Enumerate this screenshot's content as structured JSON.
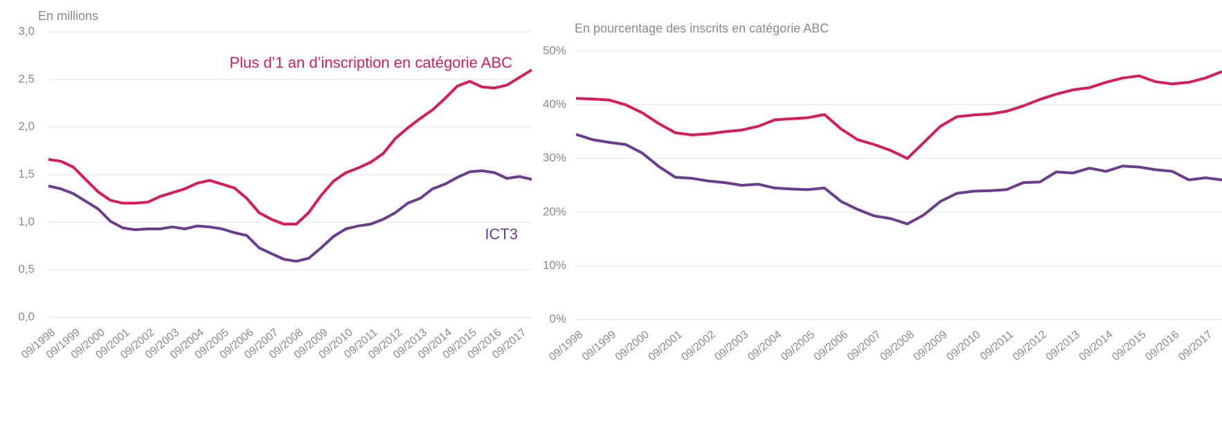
{
  "chart_data": [
    {
      "type": "line",
      "title": "En millions",
      "categories": [
        "09/1998",
        null,
        "09/1999",
        null,
        "09/2000",
        null,
        "09/2001",
        null,
        "09/2002",
        null,
        "09/2003",
        null,
        "09/2004",
        null,
        "09/2005",
        null,
        "09/2006",
        null,
        "09/2007",
        null,
        "09/2008",
        null,
        "09/2009",
        null,
        "09/2010",
        null,
        "09/2011",
        null,
        "09/2012",
        null,
        "09/2013",
        null,
        "09/2014",
        null,
        "09/2015",
        null,
        "09/2016",
        null,
        "09/2017",
        null
      ],
      "series": [
        {
          "name": "Plus d’1 an d’inscription en catégorie ABC",
          "color": "#d81b5a",
          "values": [
            1.66,
            1.64,
            1.58,
            1.45,
            1.32,
            1.23,
            1.2,
            1.2,
            1.21,
            1.27,
            1.31,
            1.35,
            1.41,
            1.44,
            1.4,
            1.36,
            1.25,
            1.1,
            1.03,
            0.98,
            0.98,
            1.1,
            1.28,
            1.43,
            1.52,
            1.57,
            1.63,
            1.72,
            1.88,
            1.99,
            2.09,
            2.18,
            2.3,
            2.43,
            2.48,
            2.42,
            2.41,
            2.44,
            2.52,
            2.6
          ]
        },
        {
          "name": "ICT3",
          "color": "#6a3d8f",
          "values": [
            1.38,
            1.35,
            1.3,
            1.22,
            1.14,
            1.01,
            0.94,
            0.92,
            0.93,
            0.93,
            0.95,
            0.93,
            0.96,
            0.95,
            0.93,
            0.89,
            0.86,
            0.73,
            0.67,
            0.61,
            0.59,
            0.62,
            0.73,
            0.85,
            0.93,
            0.96,
            0.98,
            1.03,
            1.1,
            1.2,
            1.25,
            1.35,
            1.4,
            1.47,
            1.53,
            1.54,
            1.52,
            1.46,
            1.48,
            1.45
          ]
        }
      ],
      "ylim": [
        0,
        3
      ],
      "yticks": [
        {
          "value": 0,
          "label": "0,0"
        },
        {
          "value": 0.5,
          "label": "0,5"
        },
        {
          "value": 1,
          "label": "1,0"
        },
        {
          "value": 1.5,
          "label": "1,5"
        },
        {
          "value": 2,
          "label": "2,0"
        },
        {
          "value": 2.5,
          "label": "2,5"
        },
        {
          "value": 3,
          "label": "3,0"
        }
      ],
      "grid": true
    },
    {
      "type": "line",
      "title": "En pourcentage des inscrits en catégorie ABC",
      "categories": [
        "09/1998",
        null,
        "09/1999",
        null,
        "09/2000",
        null,
        "09/2001",
        null,
        "09/2002",
        null,
        "09/2003",
        null,
        "09/2004",
        null,
        "09/2005",
        null,
        "09/2006",
        null,
        "09/2007",
        null,
        "09/2008",
        null,
        "09/2009",
        null,
        "09/2010",
        null,
        "09/2011",
        null,
        "09/2012",
        null,
        "09/2013",
        null,
        "09/2014",
        null,
        "09/2015",
        null,
        "09/2016",
        null,
        "09/2017",
        null
      ],
      "series": [
        {
          "color": "#d81b5a",
          "values": [
            41.2,
            41.1,
            40.9,
            40.0,
            38.5,
            36.5,
            34.8,
            34.4,
            34.6,
            35.0,
            35.3,
            36.0,
            37.2,
            37.4,
            37.6,
            38.2,
            35.5,
            33.5,
            32.6,
            31.5,
            30.0,
            33.0,
            36.0,
            37.8,
            38.1,
            38.3,
            38.8,
            39.8,
            41.0,
            42.0,
            42.8,
            43.2,
            44.2,
            45.0,
            45.4,
            44.3,
            43.9,
            44.2,
            45.0,
            46.2
          ]
        },
        {
          "color": "#6a3d8f",
          "values": [
            34.5,
            33.5,
            33.0,
            32.6,
            31.0,
            28.5,
            26.5,
            26.3,
            25.8,
            25.5,
            25.0,
            25.2,
            24.5,
            24.3,
            24.2,
            24.5,
            22.0,
            20.5,
            19.3,
            18.8,
            17.8,
            19.5,
            22.0,
            23.5,
            23.9,
            24.0,
            24.2,
            25.5,
            25.6,
            27.5,
            27.3,
            28.2,
            27.6,
            28.6,
            28.4,
            27.9,
            27.6,
            26.0,
            26.4,
            26.0
          ]
        }
      ],
      "ylim": [
        0,
        50
      ],
      "yticks": [
        {
          "value": 0,
          "label": "0%"
        },
        {
          "value": 10,
          "label": "10%"
        },
        {
          "value": 20,
          "label": "20%"
        },
        {
          "value": 30,
          "label": "30%"
        },
        {
          "value": 40,
          "label": "40%"
        },
        {
          "value": 50,
          "label": "50%"
        }
      ],
      "grid": true
    }
  ]
}
